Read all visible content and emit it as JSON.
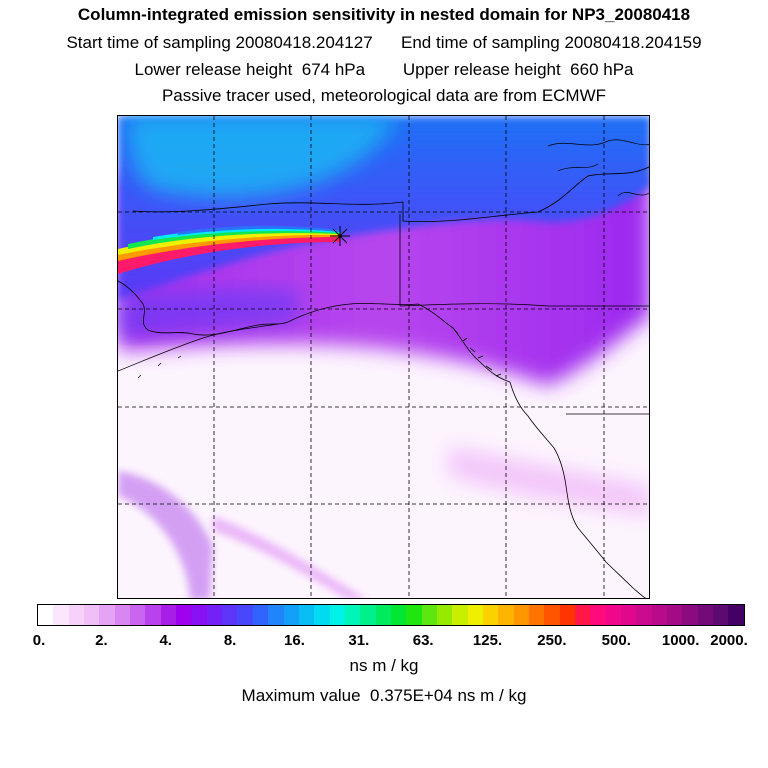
{
  "header": {
    "title": "Column-integrated emission sensitivity in nested domain for NP3_20080418",
    "start_label": "Start time of sampling 20080418.204127",
    "end_label": "End time of sampling 20080418.204159",
    "lower_label": "Lower release height  674 hPa",
    "upper_label": "Upper release height  660 hPa",
    "note": "Passive tracer used, meteorological data are from ECMWF"
  },
  "colorbar": {
    "tick_labels": [
      "0.",
      "2.",
      "4.",
      "8.",
      "16.",
      "31.",
      "63.",
      "125.",
      "250.",
      "500.",
      "1000.",
      "2000."
    ],
    "colors": [
      "#ffffff",
      "#fbe6fd",
      "#f6d2fb",
      "#f0bff8",
      "#e5a3f5",
      "#d886f2",
      "#c965ef",
      "#b942ec",
      "#a81ee9",
      "#9f00ef",
      "#8a10f4",
      "#7421f8",
      "#5e33fa",
      "#4747fc",
      "#3064fc",
      "#2084fa",
      "#12a0f8",
      "#08bdf4",
      "#00dbf0",
      "#00f2e6",
      "#00f5b8",
      "#00f08c",
      "#00ea5e",
      "#00e632",
      "#20e610",
      "#5ee610",
      "#96ea00",
      "#c8ee00",
      "#eef000",
      "#fbd200",
      "#ffb400",
      "#ff9600",
      "#ff7400",
      "#ff5400",
      "#ff3400",
      "#ff1848",
      "#ff0a7a",
      "#f0088c",
      "#e0098e",
      "#cc0a90",
      "#b80b8c",
      "#a30a86",
      "#8c0a80",
      "#74097a",
      "#5c0a70",
      "#440064"
    ],
    "units": "ns m / kg",
    "max_value": "Maximum value  0.375E+04 ns m / kg"
  }
}
